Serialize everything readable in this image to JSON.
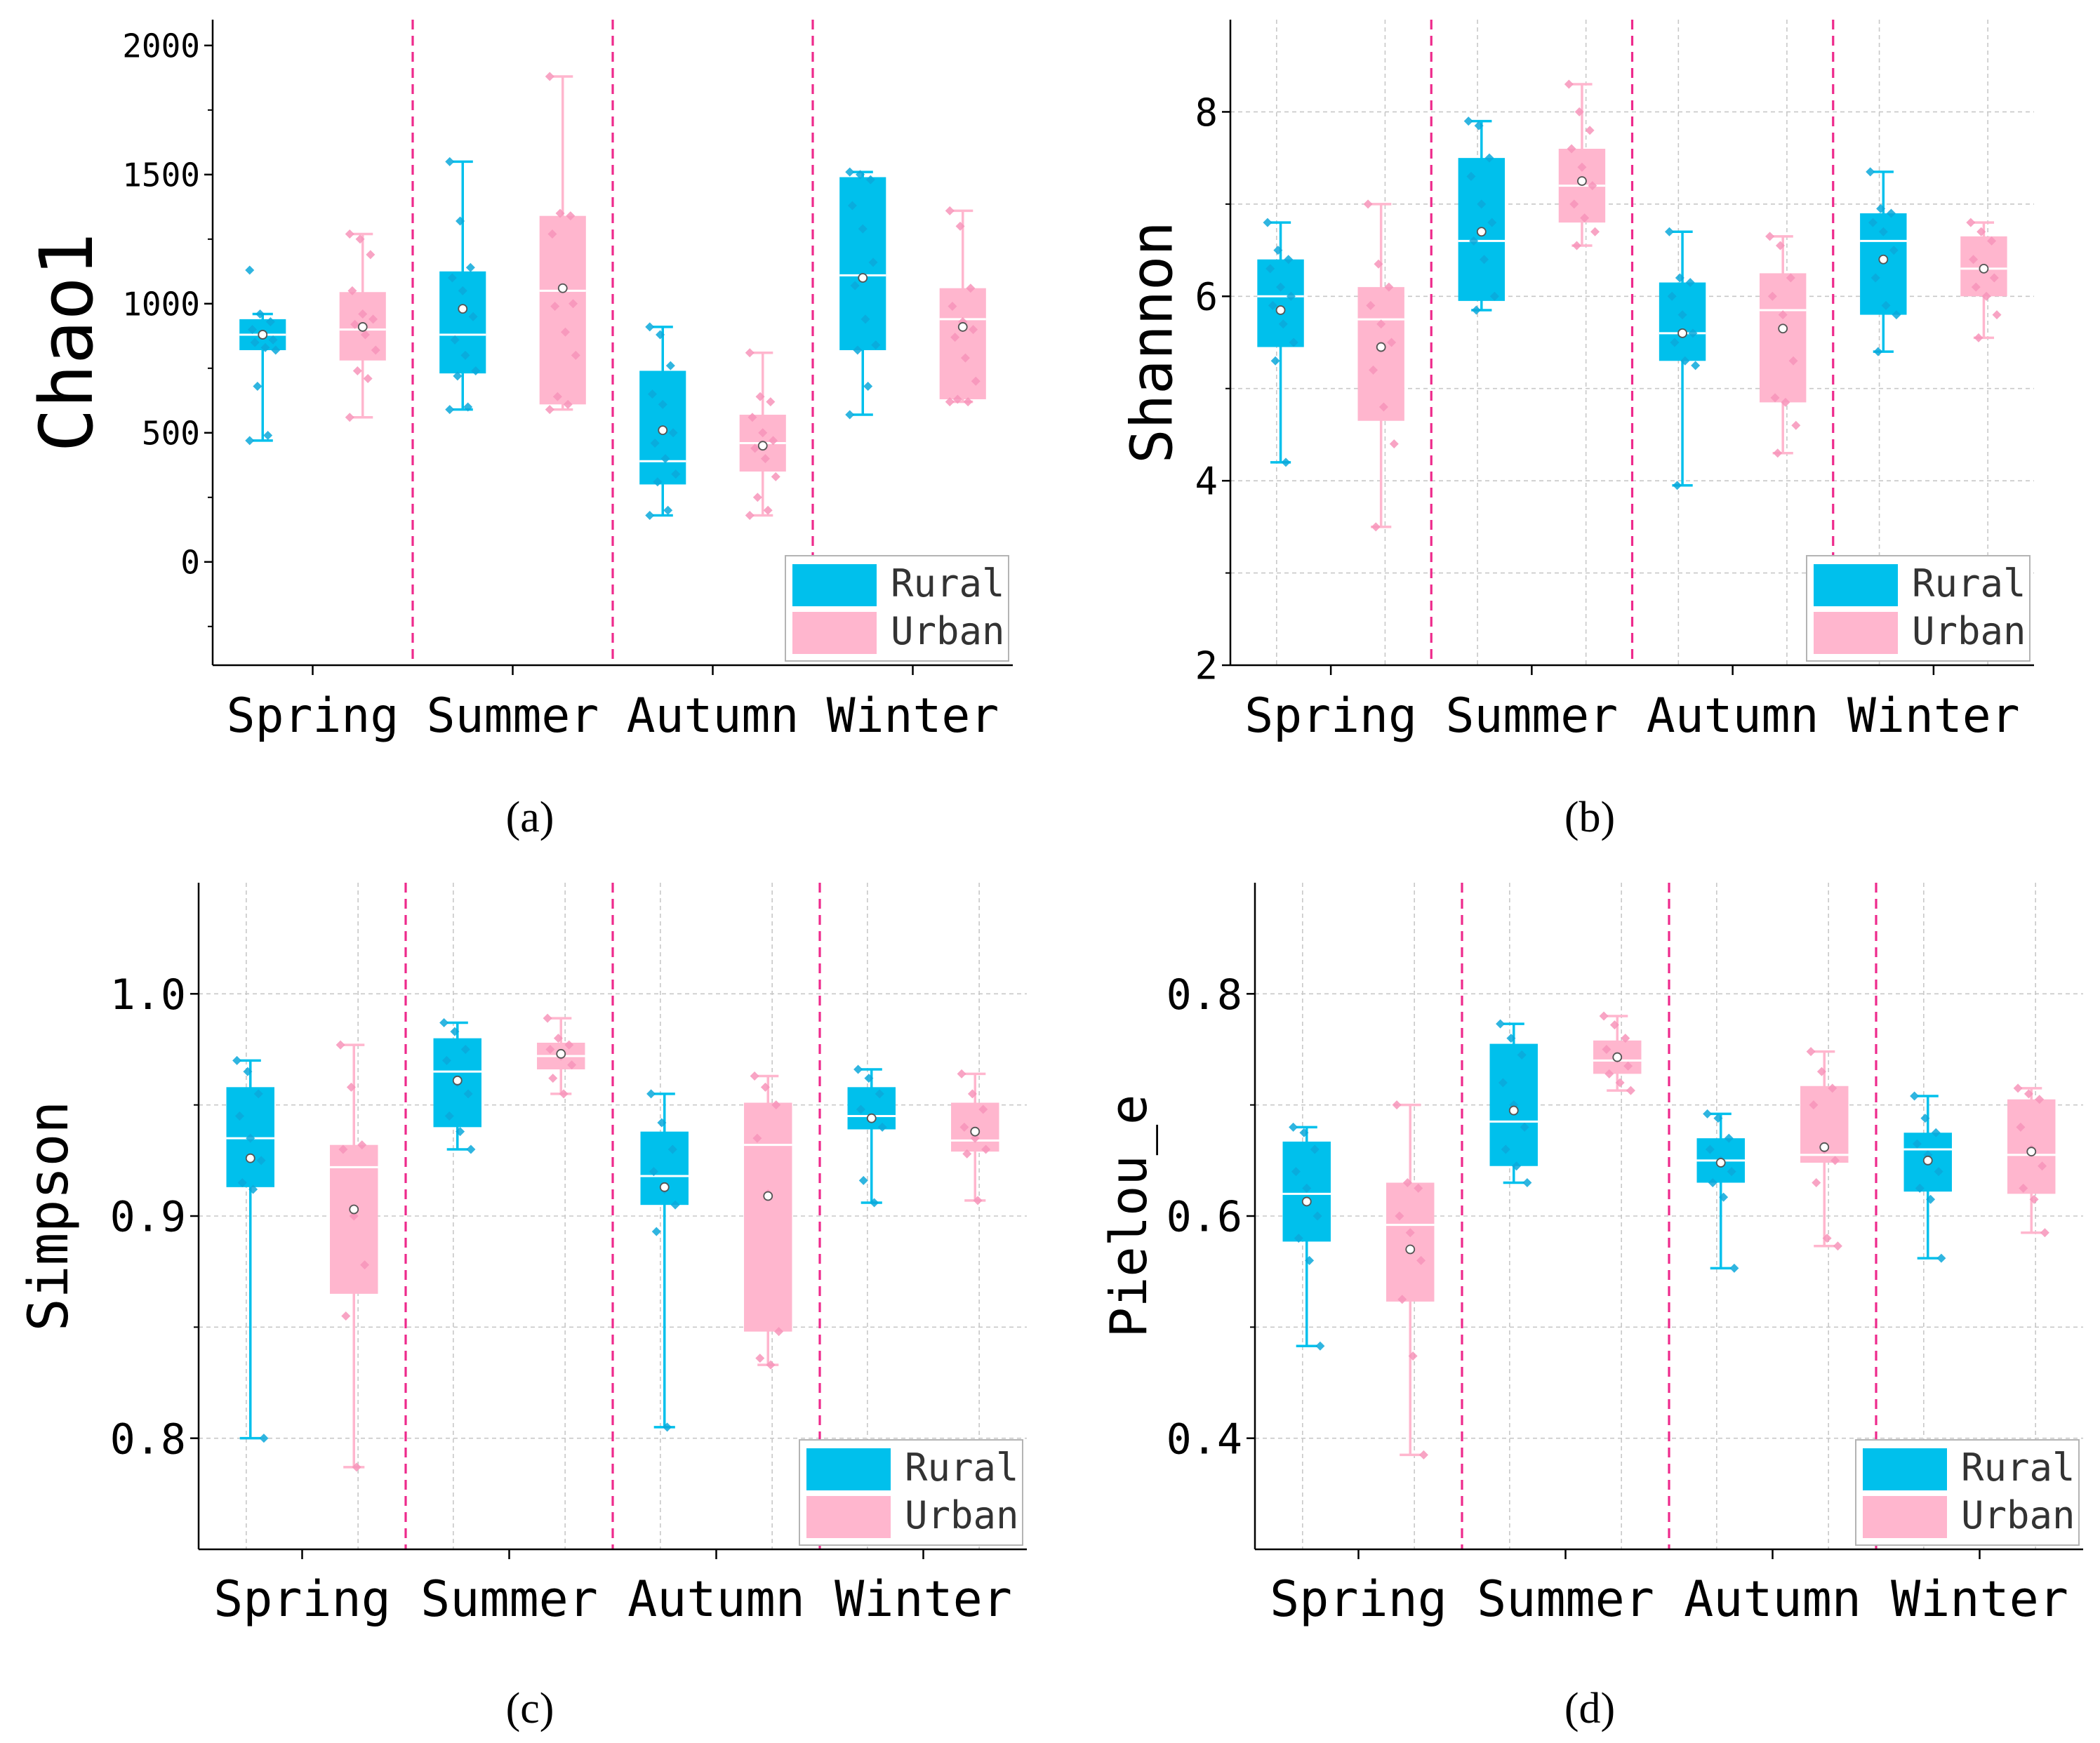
{
  "figure": {
    "captions": [
      "(a)",
      "(b)",
      "(c)",
      "(d)"
    ]
  },
  "colors": {
    "rural": "#00C0EC",
    "urban": "#FFB6CE",
    "rural_dot": "#0AA8DA",
    "urban_dot": "#F794BA",
    "divider": "#EE2A8C",
    "grid": "#C8C8C8",
    "axis": "#000000"
  },
  "chart_data": [
    {
      "type": "box",
      "panel": "a",
      "ylabel": "Chao1",
      "ylim": [
        -400,
        2100
      ],
      "yticks": [
        0,
        500,
        1000,
        1500,
        2000
      ],
      "yticklabels": [
        "0",
        "500",
        "1000",
        "1500",
        "2000"
      ],
      "minor_yticks": [
        -250,
        250,
        750,
        1250,
        1750
      ],
      "grid": false,
      "legend": {
        "position": "bottom-right",
        "entries": [
          "Rural",
          "Urban"
        ]
      },
      "categories": [
        "Spring",
        "Summer",
        "Autumn",
        "Winter"
      ],
      "series": [
        {
          "name": "Rural",
          "boxes": [
            {
              "min": 470,
              "q1": 820,
              "median": 880,
              "q3": 940,
              "max": 960,
              "mean": 880,
              "points": [
                1130,
                960,
                930,
                900,
                880,
                860,
                850,
                830,
                820,
                680,
                490,
                470
              ]
            },
            {
              "min": 590,
              "q1": 730,
              "median": 880,
              "q3": 1125,
              "max": 1550,
              "mean": 980,
              "points": [
                1550,
                1320,
                1140,
                1100,
                1050,
                950,
                860,
                800,
                740,
                720,
                600,
                590
              ]
            },
            {
              "min": 180,
              "q1": 300,
              "median": 390,
              "q3": 740,
              "max": 910,
              "mean": 510,
              "points": [
                910,
                880,
                760,
                650,
                610,
                500,
                460,
                400,
                340,
                310,
                200,
                180
              ]
            },
            {
              "min": 570,
              "q1": 820,
              "median": 1110,
              "q3": 1490,
              "max": 1510,
              "mean": 1100,
              "points": [
                1510,
                1500,
                1480,
                1380,
                1290,
                1160,
                1070,
                940,
                840,
                820,
                680,
                570
              ]
            }
          ]
        },
        {
          "name": "Urban",
          "boxes": [
            {
              "min": 560,
              "q1": 780,
              "median": 900,
              "q3": 1045,
              "max": 1270,
              "mean": 910,
              "points": [
                1270,
                1250,
                1190,
                1050,
                960,
                940,
                920,
                880,
                820,
                740,
                710,
                560
              ]
            },
            {
              "min": 590,
              "q1": 610,
              "median": 1050,
              "q3": 1340,
              "max": 1880,
              "mean": 1060,
              "points": [
                1880,
                1350,
                1340,
                1270,
                1060,
                1000,
                990,
                890,
                800,
                640,
                610,
                590
              ]
            },
            {
              "min": 180,
              "q1": 350,
              "median": 460,
              "q3": 570,
              "max": 810,
              "mean": 450,
              "points": [
                810,
                640,
                620,
                560,
                500,
                470,
                440,
                400,
                330,
                250,
                200,
                180
              ]
            },
            {
              "min": 620,
              "q1": 630,
              "median": 940,
              "q3": 1060,
              "max": 1360,
              "mean": 910,
              "points": [
                1360,
                1300,
                1060,
                990,
                930,
                900,
                870,
                790,
                700,
                630,
                620,
                620
              ]
            }
          ]
        }
      ]
    },
    {
      "type": "box",
      "panel": "b",
      "ylabel": "Shannon",
      "ylim": [
        2,
        9
      ],
      "yticks": [
        2,
        4,
        6,
        8
      ],
      "yticklabels": [
        "2",
        "4",
        "6",
        "8"
      ],
      "minor_yticks": [
        3,
        5,
        7
      ],
      "grid": true,
      "legend": {
        "position": "bottom-right",
        "entries": [
          "Rural",
          "Urban"
        ]
      },
      "categories": [
        "Spring",
        "Summer",
        "Autumn",
        "Winter"
      ],
      "series": [
        {
          "name": "Rural",
          "boxes": [
            {
              "min": 4.2,
              "q1": 5.45,
              "median": 6.0,
              "q3": 6.4,
              "max": 6.8,
              "mean": 5.85,
              "points": [
                6.8,
                6.5,
                6.4,
                6.3,
                6.1,
                6.0,
                5.9,
                5.7,
                5.5,
                5.3,
                4.2
              ]
            },
            {
              "min": 5.85,
              "q1": 5.95,
              "median": 6.6,
              "q3": 7.5,
              "max": 7.9,
              "mean": 6.7,
              "points": [
                7.9,
                7.85,
                7.5,
                7.3,
                7.0,
                6.8,
                6.6,
                6.4,
                6.0,
                5.85
              ]
            },
            {
              "min": 3.95,
              "q1": 5.3,
              "median": 5.6,
              "q3": 6.15,
              "max": 6.7,
              "mean": 5.6,
              "points": [
                6.7,
                6.2,
                6.15,
                6.0,
                5.8,
                5.6,
                5.5,
                5.3,
                5.25,
                3.95
              ]
            },
            {
              "min": 5.4,
              "q1": 5.8,
              "median": 6.6,
              "q3": 6.9,
              "max": 7.35,
              "mean": 6.4,
              "points": [
                7.35,
                6.95,
                6.9,
                6.8,
                6.7,
                6.5,
                6.2,
                5.9,
                5.8,
                5.4
              ]
            }
          ]
        },
        {
          "name": "Urban",
          "boxes": [
            {
              "min": 3.5,
              "q1": 4.65,
              "median": 5.75,
              "q3": 6.1,
              "max": 7.0,
              "mean": 5.45,
              "points": [
                7.0,
                6.35,
                6.1,
                5.9,
                5.7,
                5.5,
                5.2,
                4.8,
                4.4,
                3.5
              ]
            },
            {
              "min": 6.55,
              "q1": 6.8,
              "median": 7.2,
              "q3": 7.6,
              "max": 8.3,
              "mean": 7.25,
              "points": [
                8.3,
                8.0,
                7.8,
                7.6,
                7.4,
                7.2,
                7.0,
                6.85,
                6.7,
                6.55
              ]
            },
            {
              "min": 4.3,
              "q1": 4.85,
              "median": 5.85,
              "q3": 6.25,
              "max": 6.65,
              "mean": 5.65,
              "points": [
                6.65,
                6.55,
                6.2,
                6.0,
                5.8,
                5.3,
                4.9,
                4.85,
                4.6,
                4.3
              ]
            },
            {
              "min": 5.55,
              "q1": 6.0,
              "median": 6.3,
              "q3": 6.65,
              "max": 6.8,
              "mean": 6.3,
              "points": [
                6.8,
                6.7,
                6.6,
                6.4,
                6.3,
                6.2,
                6.1,
                6.0,
                5.8,
                5.55
              ]
            }
          ]
        }
      ]
    },
    {
      "type": "box",
      "panel": "c",
      "ylabel": "Simpson",
      "ylim": [
        0.75,
        1.05
      ],
      "yticks": [
        0.8,
        0.9,
        1.0
      ],
      "yticklabels": [
        "0.8",
        "0.9",
        "1.0"
      ],
      "minor_yticks": [
        0.85,
        0.95
      ],
      "grid": true,
      "legend": {
        "position": "bottom-right",
        "entries": [
          "Rural",
          "Urban"
        ]
      },
      "categories": [
        "Spring",
        "Summer",
        "Autumn",
        "Winter"
      ],
      "series": [
        {
          "name": "Rural",
          "boxes": [
            {
              "min": 0.8,
              "q1": 0.913,
              "median": 0.935,
              "q3": 0.958,
              "max": 0.97,
              "mean": 0.926,
              "points": [
                0.97,
                0.965,
                0.955,
                0.945,
                0.935,
                0.925,
                0.915,
                0.912,
                0.8
              ]
            },
            {
              "min": 0.93,
              "q1": 0.94,
              "median": 0.965,
              "q3": 0.98,
              "max": 0.987,
              "mean": 0.961,
              "points": [
                0.987,
                0.983,
                0.975,
                0.97,
                0.96,
                0.955,
                0.945,
                0.938,
                0.93
              ]
            },
            {
              "min": 0.805,
              "q1": 0.905,
              "median": 0.918,
              "q3": 0.938,
              "max": 0.955,
              "mean": 0.913,
              "points": [
                0.955,
                0.942,
                0.93,
                0.92,
                0.912,
                0.905,
                0.893,
                0.805
              ]
            },
            {
              "min": 0.906,
              "q1": 0.939,
              "median": 0.945,
              "q3": 0.958,
              "max": 0.966,
              "mean": 0.944,
              "points": [
                0.966,
                0.962,
                0.955,
                0.948,
                0.944,
                0.94,
                0.916,
                0.906
              ]
            }
          ]
        },
        {
          "name": "Urban",
          "boxes": [
            {
              "min": 0.787,
              "q1": 0.865,
              "median": 0.922,
              "q3": 0.932,
              "max": 0.977,
              "mean": 0.903,
              "points": [
                0.977,
                0.958,
                0.932,
                0.93,
                0.9,
                0.878,
                0.855,
                0.787
              ]
            },
            {
              "min": 0.955,
              "q1": 0.966,
              "median": 0.972,
              "q3": 0.978,
              "max": 0.989,
              "mean": 0.973,
              "points": [
                0.989,
                0.98,
                0.977,
                0.975,
                0.972,
                0.968,
                0.962,
                0.955
              ]
            },
            {
              "min": 0.833,
              "q1": 0.848,
              "median": 0.932,
              "q3": 0.951,
              "max": 0.963,
              "mean": 0.909,
              "points": [
                0.963,
                0.958,
                0.95,
                0.935,
                0.91,
                0.848,
                0.836,
                0.833
              ]
            },
            {
              "min": 0.907,
              "q1": 0.929,
              "median": 0.934,
              "q3": 0.951,
              "max": 0.964,
              "mean": 0.938,
              "points": [
                0.964,
                0.955,
                0.948,
                0.94,
                0.935,
                0.93,
                0.928,
                0.907
              ]
            }
          ]
        }
      ]
    },
    {
      "type": "box",
      "panel": "d",
      "ylabel": "Pielou_e",
      "ylim": [
        0.3,
        0.9
      ],
      "yticks": [
        0.4,
        0.6,
        0.8
      ],
      "yticklabels": [
        "0.4",
        "0.6",
        "0.8"
      ],
      "minor_yticks": [
        0.5,
        0.7
      ],
      "grid": true,
      "legend": {
        "position": "bottom-right",
        "entries": [
          "Rural",
          "Urban"
        ]
      },
      "categories": [
        "Spring",
        "Summer",
        "Autumn",
        "Winter"
      ],
      "series": [
        {
          "name": "Rural",
          "boxes": [
            {
              "min": 0.483,
              "q1": 0.577,
              "median": 0.62,
              "q3": 0.667,
              "max": 0.68,
              "mean": 0.613,
              "points": [
                0.68,
                0.675,
                0.66,
                0.64,
                0.625,
                0.6,
                0.58,
                0.56,
                0.483
              ]
            },
            {
              "min": 0.63,
              "q1": 0.645,
              "median": 0.685,
              "q3": 0.755,
              "max": 0.773,
              "mean": 0.695,
              "points": [
                0.773,
                0.76,
                0.745,
                0.72,
                0.7,
                0.68,
                0.66,
                0.645,
                0.63
              ]
            },
            {
              "min": 0.553,
              "q1": 0.63,
              "median": 0.65,
              "q3": 0.67,
              "max": 0.692,
              "mean": 0.648,
              "points": [
                0.692,
                0.688,
                0.67,
                0.66,
                0.65,
                0.64,
                0.63,
                0.617,
                0.553
              ]
            },
            {
              "min": 0.562,
              "q1": 0.622,
              "median": 0.66,
              "q3": 0.675,
              "max": 0.708,
              "mean": 0.65,
              "points": [
                0.708,
                0.688,
                0.675,
                0.665,
                0.655,
                0.64,
                0.625,
                0.615,
                0.562
              ]
            }
          ]
        },
        {
          "name": "Urban",
          "boxes": [
            {
              "min": 0.385,
              "q1": 0.523,
              "median": 0.592,
              "q3": 0.63,
              "max": 0.7,
              "mean": 0.57,
              "points": [
                0.7,
                0.63,
                0.625,
                0.6,
                0.585,
                0.56,
                0.525,
                0.474,
                0.385
              ]
            },
            {
              "min": 0.713,
              "q1": 0.728,
              "median": 0.74,
              "q3": 0.758,
              "max": 0.78,
              "mean": 0.743,
              "points": [
                0.78,
                0.772,
                0.76,
                0.75,
                0.742,
                0.735,
                0.728,
                0.72,
                0.713
              ]
            },
            {
              "min": 0.573,
              "q1": 0.648,
              "median": 0.655,
              "q3": 0.717,
              "max": 0.748,
              "mean": 0.662,
              "points": [
                0.748,
                0.73,
                0.715,
                0.7,
                0.66,
                0.65,
                0.63,
                0.58,
                0.573
              ]
            },
            {
              "min": 0.585,
              "q1": 0.62,
              "median": 0.655,
              "q3": 0.705,
              "max": 0.715,
              "mean": 0.658,
              "points": [
                0.715,
                0.71,
                0.705,
                0.68,
                0.66,
                0.645,
                0.625,
                0.615,
                0.585
              ]
            }
          ]
        }
      ]
    }
  ]
}
